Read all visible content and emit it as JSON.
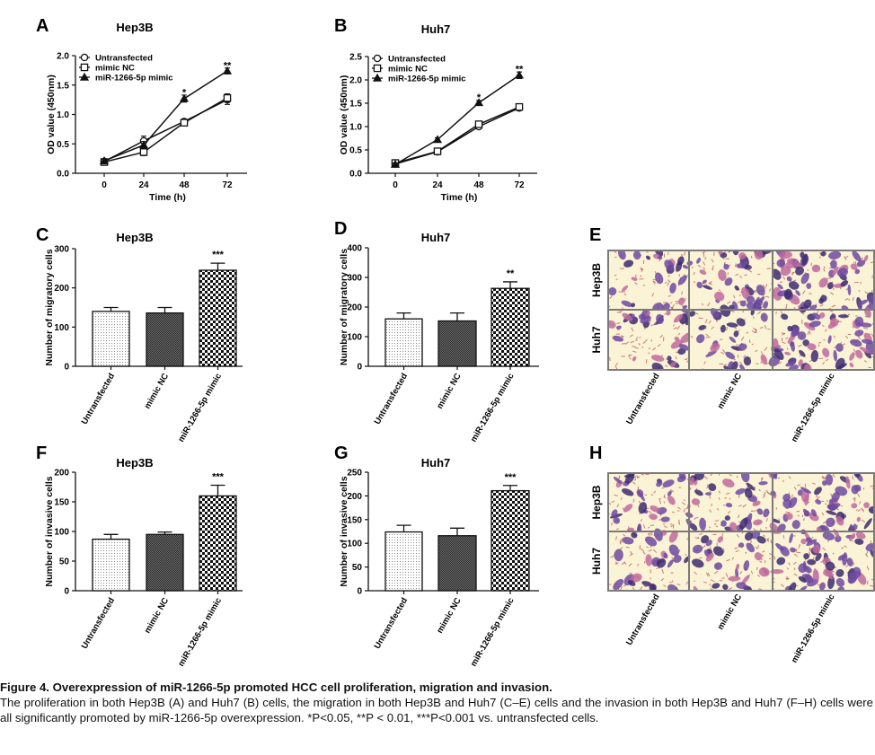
{
  "chart_data": [
    {
      "id": "A",
      "type": "line",
      "title": "Hep3B",
      "xlabel": "Time (h)",
      "ylabel": "OD value (450nm)",
      "x": [
        0,
        24,
        48,
        72
      ],
      "xticks": [
        "0",
        "24",
        "48",
        "72"
      ],
      "ylim": [
        0,
        2.0
      ],
      "yticks": [
        "0.0",
        "0.5",
        "1.0",
        "1.5",
        "2.0"
      ],
      "legend_position": "top-left",
      "series": [
        {
          "name": "Untransfected",
          "marker": "circle",
          "values": [
            0.2,
            0.55,
            0.88,
            1.25
          ],
          "err": [
            0.03,
            0.08,
            0.04,
            0.08
          ]
        },
        {
          "name": "mimic NC",
          "marker": "square",
          "values": [
            0.19,
            0.36,
            0.86,
            1.28
          ],
          "err": [
            0.03,
            0.06,
            0.04,
            0.07
          ]
        },
        {
          "name": "miR-1266-5p mimic",
          "marker": "triangle",
          "values": [
            0.21,
            0.48,
            1.27,
            1.74
          ],
          "err": [
            0.03,
            0.06,
            0.06,
            0.05
          ]
        }
      ],
      "annotations": [
        {
          "x": 48,
          "y": 1.38,
          "text": "*"
        },
        {
          "x": 72,
          "y": 1.84,
          "text": "**"
        }
      ]
    },
    {
      "id": "B",
      "type": "line",
      "title": "Huh7",
      "xlabel": "Time (h)",
      "ylabel": "OD value (450nm)",
      "x": [
        0,
        24,
        48,
        72
      ],
      "xticks": [
        "0",
        "24",
        "48",
        "72"
      ],
      "ylim": [
        0,
        2.5
      ],
      "yticks": [
        "0.0",
        "0.5",
        "1.0",
        "1.5",
        "2.0",
        "2.5"
      ],
      "legend_position": "top-left",
      "series": [
        {
          "name": "Untransfected",
          "marker": "circle",
          "values": [
            0.2,
            0.46,
            1.0,
            1.4
          ],
          "err": [
            0.04,
            0.04,
            0.04,
            0.05
          ]
        },
        {
          "name": "mimic NC",
          "marker": "square",
          "values": [
            0.22,
            0.47,
            1.05,
            1.42
          ],
          "err": [
            0.04,
            0.05,
            0.04,
            0.05
          ]
        },
        {
          "name": "miR-1266-5p mimic",
          "marker": "triangle",
          "values": [
            0.19,
            0.72,
            1.51,
            2.1
          ],
          "err": [
            0.03,
            0.04,
            0.05,
            0.07
          ]
        }
      ],
      "annotations": [
        {
          "x": 48,
          "y": 1.63,
          "text": "*"
        },
        {
          "x": 72,
          "y": 2.24,
          "text": "**"
        }
      ]
    },
    {
      "id": "C",
      "type": "bar",
      "title": "Hep3B",
      "ylabel": "Number of migratory cells",
      "categories": [
        "Untransfected",
        "mimic NC",
        "miR-1266-5p mimic"
      ],
      "values": [
        140,
        136,
        245
      ],
      "err": [
        10,
        14,
        18
      ],
      "fills": [
        "dots",
        "dark",
        "check"
      ],
      "ylim": [
        0,
        300
      ],
      "yticks": [
        "0",
        "100",
        "200",
        "300"
      ],
      "annotations": [
        {
          "category": 2,
          "text": "***"
        }
      ]
    },
    {
      "id": "D",
      "type": "bar",
      "title": "Huh7",
      "ylabel": "Number of migratory cells",
      "categories": [
        "Untransfected",
        "mimic NC",
        "miR-1266-5p mimic"
      ],
      "values": [
        160,
        153,
        263
      ],
      "err": [
        20,
        27,
        22
      ],
      "fills": [
        "dots",
        "dark",
        "check"
      ],
      "ylim": [
        0,
        400
      ],
      "yticks": [
        "0",
        "100",
        "200",
        "300",
        "400"
      ],
      "annotations": [
        {
          "category": 2,
          "text": "**"
        }
      ]
    },
    {
      "id": "F",
      "type": "bar",
      "title": "Hep3B",
      "ylabel": "Number of invasive cells",
      "categories": [
        "Untransfected",
        "mimic NC",
        "miR-1266-5p mimic"
      ],
      "values": [
        87,
        95,
        160
      ],
      "err": [
        8,
        4,
        18
      ],
      "fills": [
        "dots",
        "dark",
        "check"
      ],
      "ylim": [
        0,
        200
      ],
      "yticks": [
        "0",
        "50",
        "100",
        "150",
        "200"
      ],
      "annotations": [
        {
          "category": 2,
          "text": "***"
        }
      ]
    },
    {
      "id": "G",
      "type": "bar",
      "title": "Huh7",
      "ylabel": "Number of invasive cells",
      "categories": [
        "Untransfected",
        "mimic NC",
        "miR-1266-5p mimic"
      ],
      "values": [
        124,
        116,
        211
      ],
      "err": [
        14,
        16,
        11
      ],
      "fills": [
        "dots",
        "dark",
        "check"
      ],
      "ylim": [
        0,
        250
      ],
      "yticks": [
        "0",
        "50",
        "100",
        "150",
        "200",
        "250"
      ],
      "annotations": [
        {
          "category": 2,
          "text": "***"
        }
      ]
    }
  ],
  "micrographs": [
    {
      "id": "E",
      "rows": [
        "Hep3B",
        "Huh7"
      ],
      "columns": [
        "Untransfected",
        "mimic NC",
        "miR-1266-5p mimic"
      ],
      "density": [
        [
          0.35,
          0.55,
          0.85
        ],
        [
          0.45,
          0.35,
          0.8
        ]
      ]
    },
    {
      "id": "H",
      "rows": [
        "Hep3B",
        "Huh7"
      ],
      "columns": [
        "Untransfected",
        "mimic NC",
        "miR-1266-5p mimic"
      ],
      "density": [
        [
          0.4,
          0.45,
          0.8
        ],
        [
          0.35,
          0.4,
          0.85
        ]
      ]
    }
  ],
  "colors": {
    "background": "#fbf3d6",
    "cell": "#6e4aa0",
    "cell_pink": "#c06a9c",
    "cell_dark": "#3c2a70",
    "grid": "#7a7a7a"
  },
  "caption": {
    "title": "Figure 4. Overexpression of miR-1266-5p promoted HCC cell proliferation, migration and invasion.",
    "body": "The proliferation in both Hep3B (A) and Huh7 (B) cells, the migration in both Hep3B and Huh7 (C–E) cells and the invasion in both Hep3B and Huh7 (F–H) cells were all significantly promoted by miR-1266-5p overexpression. *P<0.05, **P < 0.01, ***P<0.001 vs. untransfected cells."
  }
}
